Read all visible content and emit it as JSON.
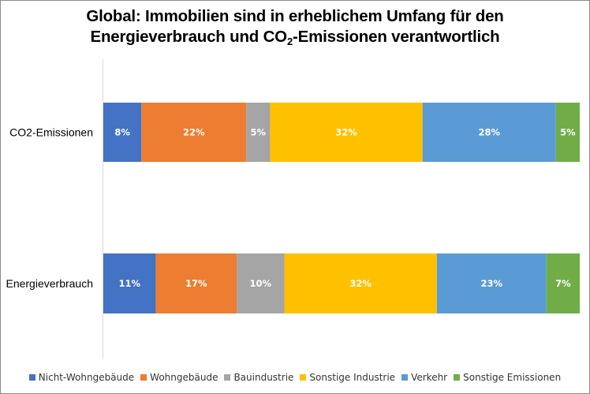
{
  "chart_data": {
    "type": "bar",
    "orientation": "horizontal",
    "stacked": true,
    "title_line1": "Global: Immobilien sind in erheblichem Umfang für den",
    "title_line2_pre": "Energieverbrauch und CO",
    "title_line2_sub": "2",
    "title_line2_post": "-Emissionen verantwortlich",
    "categories": [
      "CO2-Emissionen",
      "Energieverbrauch"
    ],
    "series": [
      {
        "name": "Nicht-Wohngebäude",
        "color": "#4472c4",
        "values": [
          8,
          11
        ],
        "labels": [
          "8%",
          "11%"
        ]
      },
      {
        "name": "Wohngebäude",
        "color": "#ed7d31",
        "values": [
          22,
          17
        ],
        "labels": [
          "22%",
          "17%"
        ]
      },
      {
        "name": "Bauindustrie",
        "color": "#a5a5a5",
        "values": [
          5,
          10
        ],
        "labels": [
          "5%",
          "10%"
        ]
      },
      {
        "name": "Sonstige Industrie",
        "color": "#ffc000",
        "values": [
          32,
          32
        ],
        "labels": [
          "32%",
          "32%"
        ]
      },
      {
        "name": "Verkehr",
        "color": "#5b9bd5",
        "values": [
          28,
          23
        ],
        "labels": [
          "28%",
          "23%"
        ]
      },
      {
        "name": "Sonstige Emissionen",
        "color": "#70ad47",
        "values": [
          5,
          7
        ],
        "labels": [
          "5%",
          "7%"
        ]
      }
    ],
    "xlim": [
      0,
      100
    ],
    "legend_position": "bottom",
    "grid": false
  }
}
